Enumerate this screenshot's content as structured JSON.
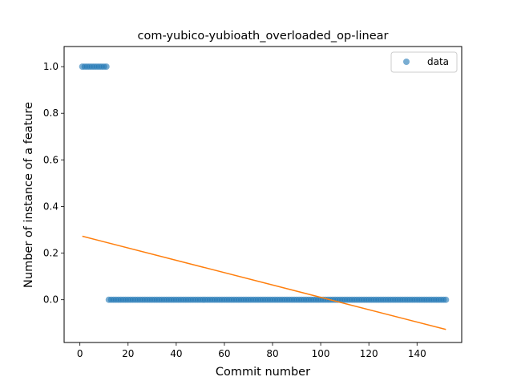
{
  "chart_data": {
    "type": "scatter",
    "title": "com-yubico-yubioath_overloaded_op-linear",
    "xlabel": "Commit number",
    "ylabel": "Number of instance of a feature",
    "xlim": [
      -6.55,
      158.55
    ],
    "ylim": [
      -0.1834,
      1.0863
    ],
    "x_ticks": [
      0,
      20,
      40,
      60,
      80,
      100,
      120,
      140
    ],
    "y_ticks": [
      0.0,
      0.2,
      0.4,
      0.6,
      0.8,
      1.0
    ],
    "x_tick_labels": [
      "0",
      "20",
      "40",
      "60",
      "80",
      "100",
      "120",
      "140"
    ],
    "y_tick_labels": [
      "0.0",
      "0.2",
      "0.4",
      "0.6",
      "0.8",
      "1.0"
    ],
    "legend_position": "top-right",
    "series": [
      {
        "name": "data",
        "kind": "scatter",
        "color": "#1f77b4",
        "segments": [
          {
            "x_start": 1,
            "x_end": 11,
            "y": 1
          },
          {
            "x_start": 12,
            "x_end": 152,
            "y": 0
          }
        ]
      },
      {
        "kind": "line",
        "color": "#ff7f0e",
        "x": [
          1,
          152
        ],
        "y": [
          0.2725,
          -0.1275
        ]
      }
    ]
  }
}
